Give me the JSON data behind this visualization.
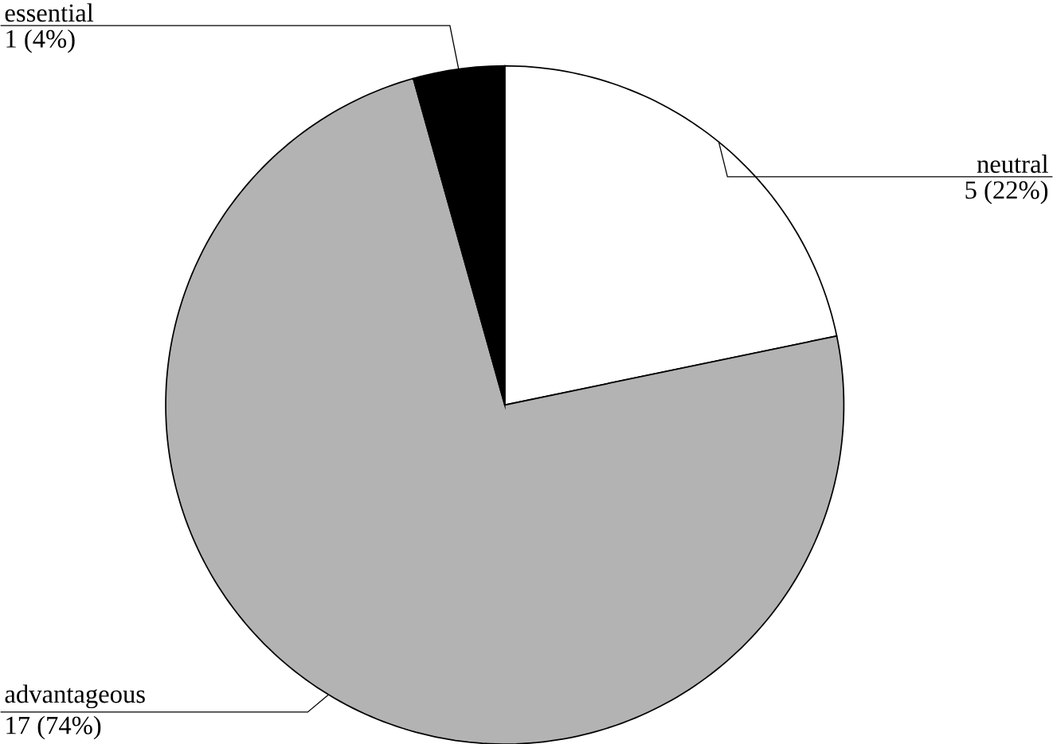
{
  "chart_data": {
    "type": "pie",
    "categories": [
      "neutral",
      "advantageous",
      "essential"
    ],
    "values": [
      5,
      17,
      1
    ],
    "value_labels": [
      "5 (22%)",
      "17 (74%)",
      "1 (4%)"
    ],
    "colors": [
      "#ffffff",
      "#b3b3b3",
      "#000000"
    ]
  }
}
